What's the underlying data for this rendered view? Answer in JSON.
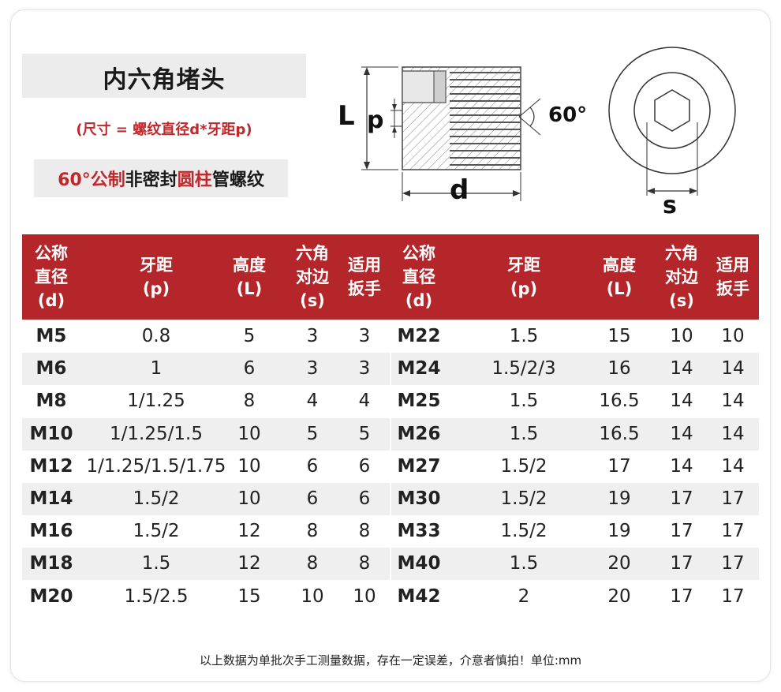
{
  "title": "内六角堵头",
  "formula": "(尺寸 = 螺纹直径d*牙距p)",
  "thread_type": {
    "part1": "60°公制",
    "part2": "非密封",
    "part3": "圆柱",
    "part4": "管螺纹"
  },
  "diagram": {
    "label_L": "L",
    "label_p": "p",
    "label_angle": "60°",
    "label_d": "d",
    "label_s": "s"
  },
  "headers": [
    "公称\n直径\n(d)",
    "牙距\n(p)",
    "高度\n(L)",
    "六角\n对边\n(s)",
    "适用\n扳手",
    "公称\n直径\n(d)",
    "牙距\n(p)",
    "高度\n(L)",
    "六角\n对边\n(s)",
    "适用\n扳手"
  ],
  "rows": [
    [
      "M5",
      "0.8",
      "5",
      "3",
      "3",
      "M22",
      "1.5",
      "15",
      "10",
      "10"
    ],
    [
      "M6",
      "1",
      "6",
      "3",
      "3",
      "M24",
      "1.5/2/3",
      "16",
      "14",
      "14"
    ],
    [
      "M8",
      "1/1.25",
      "8",
      "4",
      "4",
      "M25",
      "1.5",
      "16.5",
      "14",
      "14"
    ],
    [
      "M10",
      "1/1.25/1.5",
      "10",
      "5",
      "5",
      "M26",
      "1.5",
      "16.5",
      "14",
      "14"
    ],
    [
      "M12",
      "1/1.25/1.5/1.75",
      "10",
      "6",
      "6",
      "M27",
      "1.5/2",
      "17",
      "14",
      "14"
    ],
    [
      "M14",
      "1.5/2",
      "10",
      "6",
      "6",
      "M30",
      "1.5/2",
      "19",
      "17",
      "17"
    ],
    [
      "M16",
      "1.5/2",
      "12",
      "8",
      "8",
      "M33",
      "1.5/2",
      "19",
      "17",
      "17"
    ],
    [
      "M18",
      "1.5",
      "12",
      "8",
      "8",
      "M40",
      "1.5",
      "20",
      "17",
      "17"
    ],
    [
      "M20",
      "1.5/2.5",
      "15",
      "10",
      "10",
      "M42",
      "2",
      "20",
      "17",
      "17"
    ]
  ],
  "footer": "以上数据为单批次手工测量数据，存在一定误差，介意者慎拍！单位:mm",
  "colors": {
    "header_bg": "#b5262b",
    "accent_red": "#c0282b",
    "stripe": "#efefef"
  }
}
